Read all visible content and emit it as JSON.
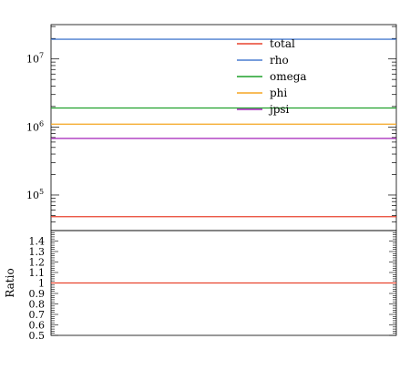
{
  "chart_data": [
    {
      "type": "line",
      "panel": "main",
      "yscale": "log",
      "ylim": [
        30000,
        32000000
      ],
      "ylabel": "",
      "xlabel": "",
      "grid": false,
      "legend_placement": "top-center",
      "ytick_labels": [
        {
          "value": 100000,
          "base": "10",
          "exp": "5"
        },
        {
          "value": 1000000,
          "base": "10",
          "exp": "6"
        },
        {
          "value": 10000000,
          "base": "10",
          "exp": "7"
        }
      ],
      "series": [
        {
          "name": "total",
          "color": "#e8432e",
          "value": 48000
        },
        {
          "name": "rho",
          "color": "#4a7dd0",
          "value": 19500000
        },
        {
          "name": "omega",
          "color": "#1fa02a",
          "value": 1900000
        },
        {
          "name": "phi",
          "color": "#f5a623",
          "value": 1100000
        },
        {
          "name": "jpsi",
          "color": "#a321b8",
          "value": 680000
        }
      ]
    },
    {
      "type": "line",
      "panel": "ratio",
      "ylabel": "Ratio",
      "xlabel": "",
      "ylim": [
        0.5,
        1.5
      ],
      "grid": false,
      "ytick_labels": [
        "1.4",
        "1.3",
        "1.2",
        "1.1",
        "1",
        "0.9",
        "0.8",
        "0.7",
        "0.6",
        "0.5"
      ],
      "series": [
        {
          "color": "#e8432e",
          "value": 1.0
        }
      ]
    }
  ]
}
